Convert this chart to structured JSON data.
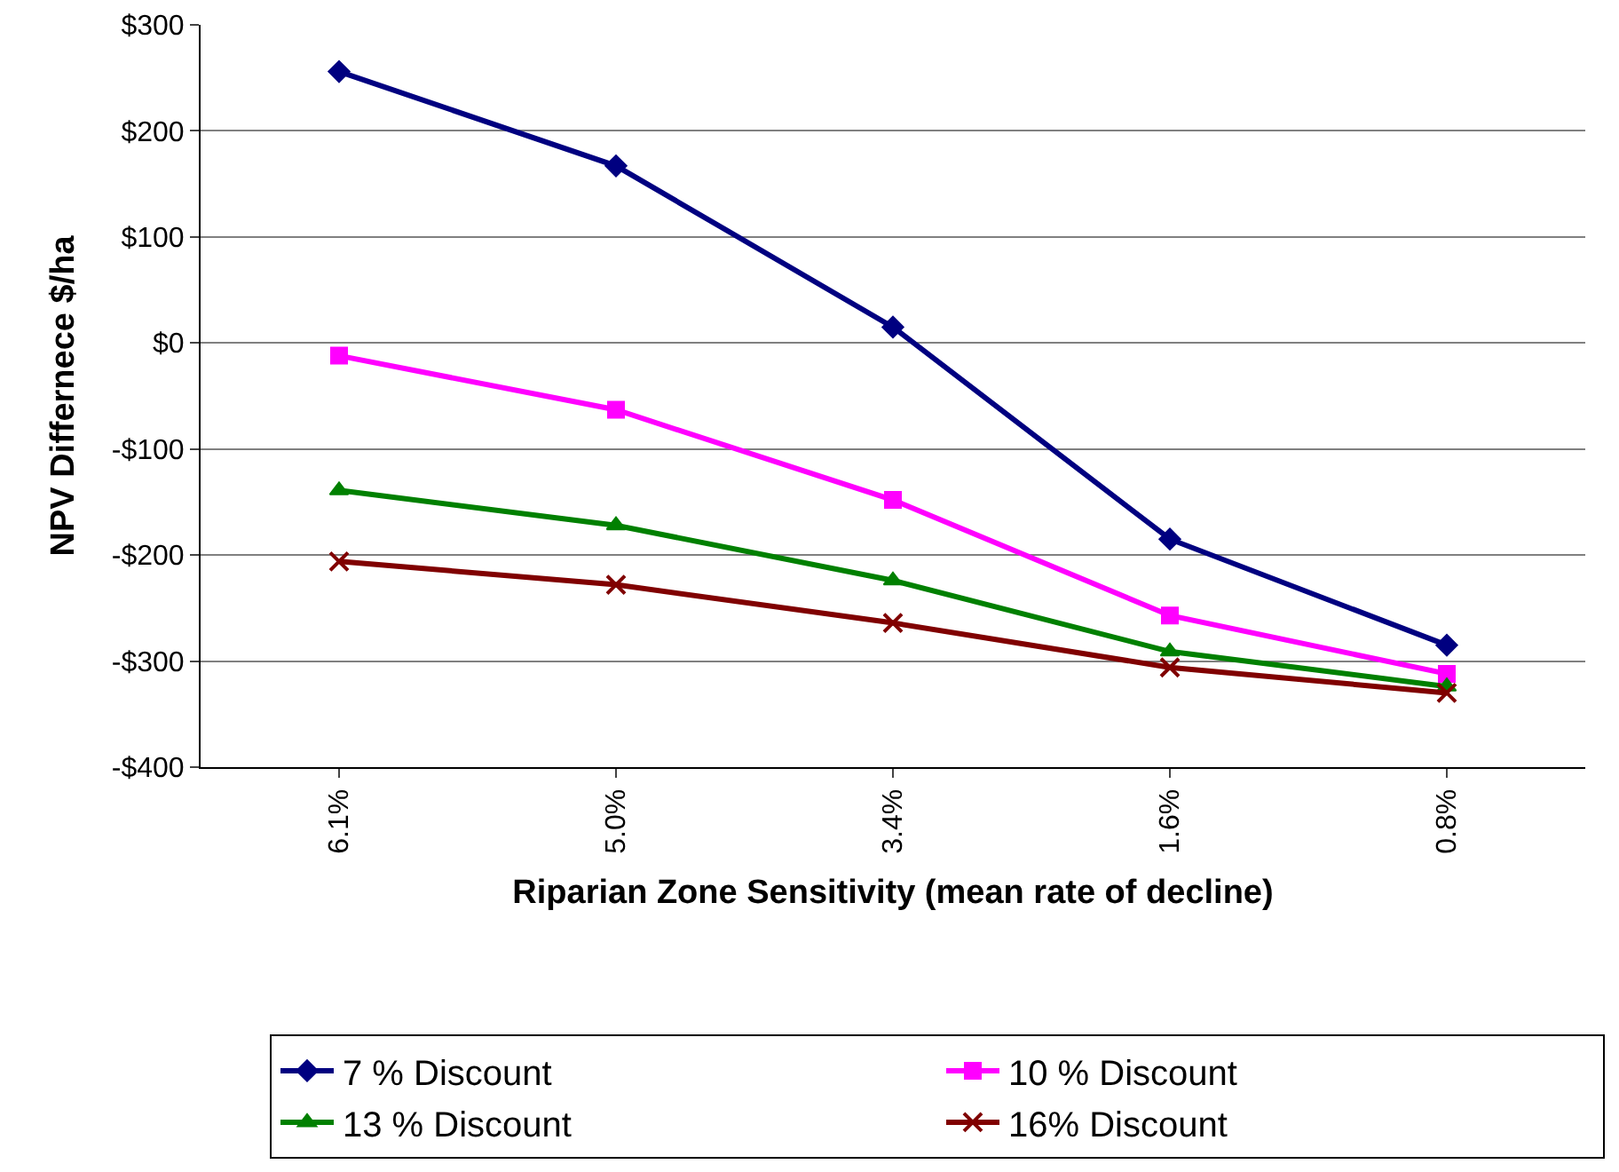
{
  "chart_data": {
    "type": "line",
    "xlabel": "Riparian Zone Sensitivity (mean rate of decline)",
    "ylabel": "NPV Differnece $/ha",
    "categories": [
      "6.1%",
      "5.0%",
      "3.4%",
      "1.6%",
      "0.8%"
    ],
    "series": [
      {
        "name": "7 % Discount",
        "color": "#000080",
        "marker": "diamond",
        "values": [
          256,
          167,
          15,
          -185,
          -285
        ]
      },
      {
        "name": "10 % Discount",
        "color": "#ff00ff",
        "marker": "square",
        "values": [
          -12,
          -63,
          -148,
          -257,
          -312
        ]
      },
      {
        "name": "13 % Discount",
        "color": "#008000",
        "marker": "triangle",
        "values": [
          -139,
          -172,
          -224,
          -291,
          -324
        ]
      },
      {
        "name": "16% Discount",
        "color": "#800000",
        "marker": "cross",
        "values": [
          -206,
          -228,
          -264,
          -306,
          -330
        ]
      }
    ],
    "ylim": [
      -400,
      300
    ],
    "yticks": [
      {
        "value": -400,
        "label": "-$400"
      },
      {
        "value": -300,
        "label": "-$300"
      },
      {
        "value": -200,
        "label": "-$200"
      },
      {
        "value": -100,
        "label": "-$100"
      },
      {
        "value": 0,
        "label": "$0"
      },
      {
        "value": 100,
        "label": "$100"
      },
      {
        "value": 200,
        "label": "$200"
      },
      {
        "value": 300,
        "label": "$300"
      }
    ],
    "grid": "y",
    "legend": "bottom",
    "line_style": "solid"
  }
}
